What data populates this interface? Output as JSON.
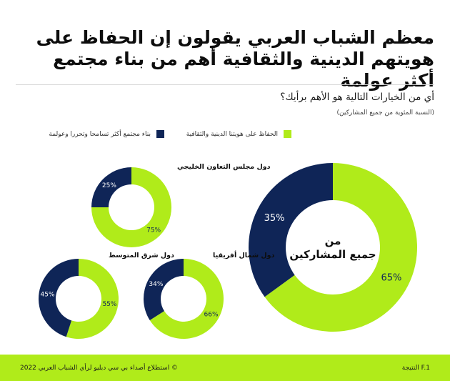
{
  "title": "معظم الشباب العربي يقولون إن الحفاظ على هويتهم الدينية والثقافية أهم من بناء مجتمع أكثر عولمة",
  "question": "أي من الخيارات التالية هو الأهم برأيك؟",
  "note": "(النسبة المئوية من جميع المشاركين)",
  "legend": [
    {
      "label": "الحفاظ على هويتنا الدينية والثقافية",
      "color": "#b0eb1a"
    },
    {
      "label": "بناء مجتمع أكثر تسامحا وتحررا وعولمة",
      "color": "#0f2557"
    }
  ],
  "chart_data": [
    {
      "type": "pie",
      "donut": true,
      "title": "من جميع المشاركين",
      "series": [
        {
          "name": "الحفاظ على هويتنا الدينية والثقافية",
          "value": 65
        },
        {
          "name": "بناء مجتمع أكثر تسامحا وتحررا وعولمة",
          "value": 35
        }
      ],
      "labels": [
        "65%",
        "35%"
      ]
    },
    {
      "type": "pie",
      "donut": true,
      "title": "دول مجلس التعاون الخليجي",
      "series": [
        {
          "name": "الحفاظ على هويتنا الدينية والثقافية",
          "value": 75
        },
        {
          "name": "بناء مجتمع أكثر تسامحا وتحررا وعولمة",
          "value": 25
        }
      ],
      "labels": [
        "75%",
        "25%"
      ]
    },
    {
      "type": "pie",
      "donut": true,
      "title": "دول شمال أفريقيا",
      "series": [
        {
          "name": "الحفاظ على هويتنا الدينية والثقافية",
          "value": 66
        },
        {
          "name": "بناء مجتمع أكثر تسامحا وتحررا وعولمة",
          "value": 34
        }
      ],
      "labels": [
        "66%",
        "34%"
      ]
    },
    {
      "type": "pie",
      "donut": true,
      "title": "دول شرق المتوسط",
      "series": [
        {
          "name": "الحفاظ على هويتنا الدينية والثقافية",
          "value": 55
        },
        {
          "name": "بناء مجتمع أكثر تسامحا وتحررا وعولمة",
          "value": 45
        }
      ],
      "labels": [
        "55%",
        "45%"
      ]
    }
  ],
  "footer": {
    "result": "النتيجة F.1",
    "copyright": "© استطلاع أصداء بي سي دبليو لرأي الشباب العربي 2022"
  }
}
